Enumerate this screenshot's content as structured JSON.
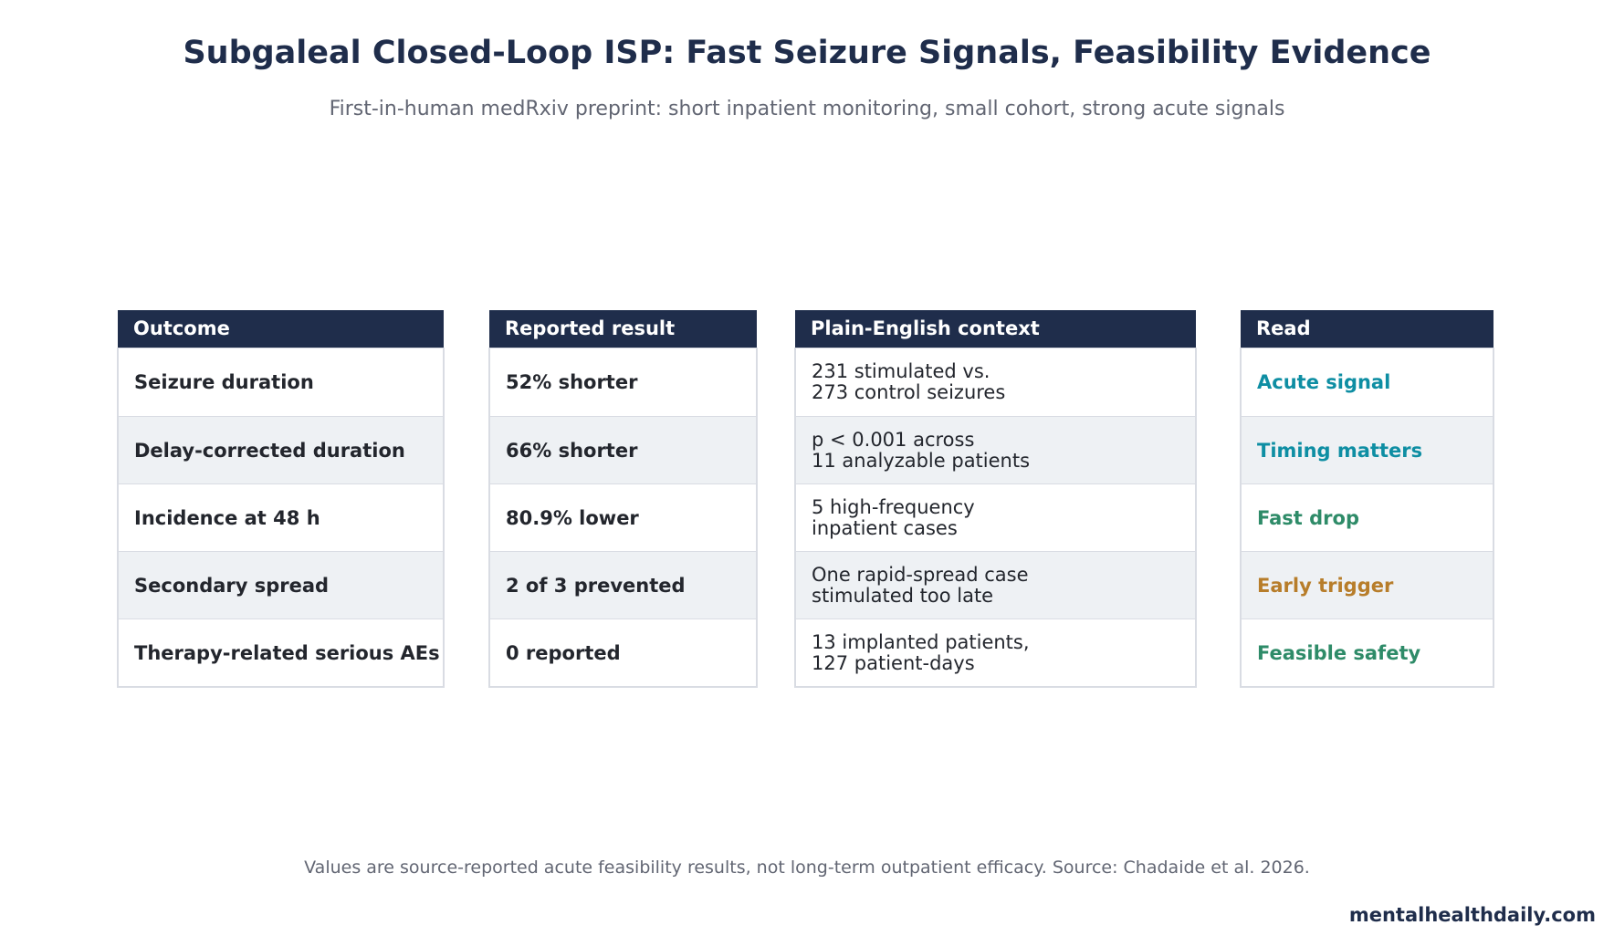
{
  "header": {
    "title": "Subgaleal Closed-Loop ISP: Fast Seizure Signals, Feasibility Evidence",
    "subtitle": "First-in-human medRxiv preprint: short inpatient monitoring, small cohort, strong acute signals"
  },
  "table": {
    "columns": [
      "Outcome",
      "Reported result",
      "Plain-English context",
      "Read"
    ],
    "rows": [
      {
        "outcome": "Seizure duration",
        "result": "52% shorter",
        "context": [
          "231 stimulated vs.",
          "273 control seizures"
        ],
        "read": "Acute signal",
        "read_color": "#0e8ea3"
      },
      {
        "outcome": "Delay-corrected duration",
        "result": "66% shorter",
        "context": [
          "p < 0.001 across",
          "11 analyzable patients"
        ],
        "read": "Timing matters",
        "read_color": "#0e8ea3"
      },
      {
        "outcome": "Incidence at 48 h",
        "result": "80.9% lower",
        "context": [
          "5 high-frequency",
          "inpatient cases"
        ],
        "read": "Fast drop",
        "read_color": "#2e8b68"
      },
      {
        "outcome": "Secondary spread",
        "result": "2 of 3 prevented",
        "context": [
          "One rapid-spread case",
          "stimulated too late"
        ],
        "read": "Early trigger",
        "read_color": "#b77d2a"
      },
      {
        "outcome": "Therapy-related serious AEs",
        "result": "0 reported",
        "context": [
          "13 implanted patients,",
          "127 patient-days"
        ],
        "read": "Feasible safety",
        "read_color": "#2e8b68"
      }
    ]
  },
  "footer": {
    "note": "Values are source-reported acute feasibility results, not long-term outpatient efficacy. Source: Chadaide et al. 2026.",
    "brand": "mentalhealthdaily.com"
  },
  "colors": {
    "header_bg": "#1f2d4b",
    "alt_row_bg": "#eef1f4",
    "border": "#d9dce3"
  }
}
